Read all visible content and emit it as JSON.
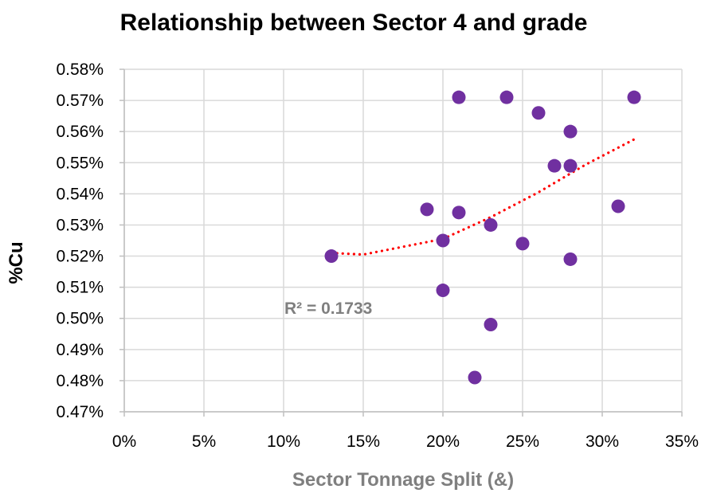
{
  "chart_data": {
    "type": "scatter",
    "title": "Relationship between Sector 4 and grade",
    "xlabel": "Sector Tonnage Split (&)",
    "ylabel": "%Cu",
    "xlim": [
      0,
      35
    ],
    "ylim": [
      0.47,
      0.58
    ],
    "x_ticks": [
      "0%",
      "5%",
      "10%",
      "15%",
      "20%",
      "25%",
      "30%",
      "35%"
    ],
    "y_ticks": [
      "0.47%",
      "0.48%",
      "0.49%",
      "0.50%",
      "0.51%",
      "0.52%",
      "0.53%",
      "0.54%",
      "0.55%",
      "0.56%",
      "0.57%",
      "0.58%"
    ],
    "grid": true,
    "point_color": "#7030a0",
    "trendline": {
      "type": "polynomial-2",
      "color": "#ff0000",
      "style": "dotted",
      "x_range": [
        13,
        32
      ],
      "points": [
        [
          13,
          0.521
        ],
        [
          15,
          0.5205
        ],
        [
          20,
          0.5255
        ],
        [
          23,
          0.5325
        ],
        [
          26,
          0.5405
        ],
        [
          29,
          0.5495
        ],
        [
          32,
          0.5575
        ]
      ],
      "r2_label": "R² = 0.1733"
    },
    "series": [
      {
        "name": "Sector 4",
        "points": [
          [
            13,
            0.52
          ],
          [
            19,
            0.535
          ],
          [
            20,
            0.525
          ],
          [
            20,
            0.509
          ],
          [
            21,
            0.571
          ],
          [
            21,
            0.534
          ],
          [
            22,
            0.481
          ],
          [
            23,
            0.53
          ],
          [
            23,
            0.498
          ],
          [
            24,
            0.571
          ],
          [
            25,
            0.524
          ],
          [
            26,
            0.566
          ],
          [
            27,
            0.549
          ],
          [
            28,
            0.56
          ],
          [
            28,
            0.549
          ],
          [
            28,
            0.519
          ],
          [
            31,
            0.536
          ],
          [
            32,
            0.571
          ]
        ]
      }
    ]
  }
}
